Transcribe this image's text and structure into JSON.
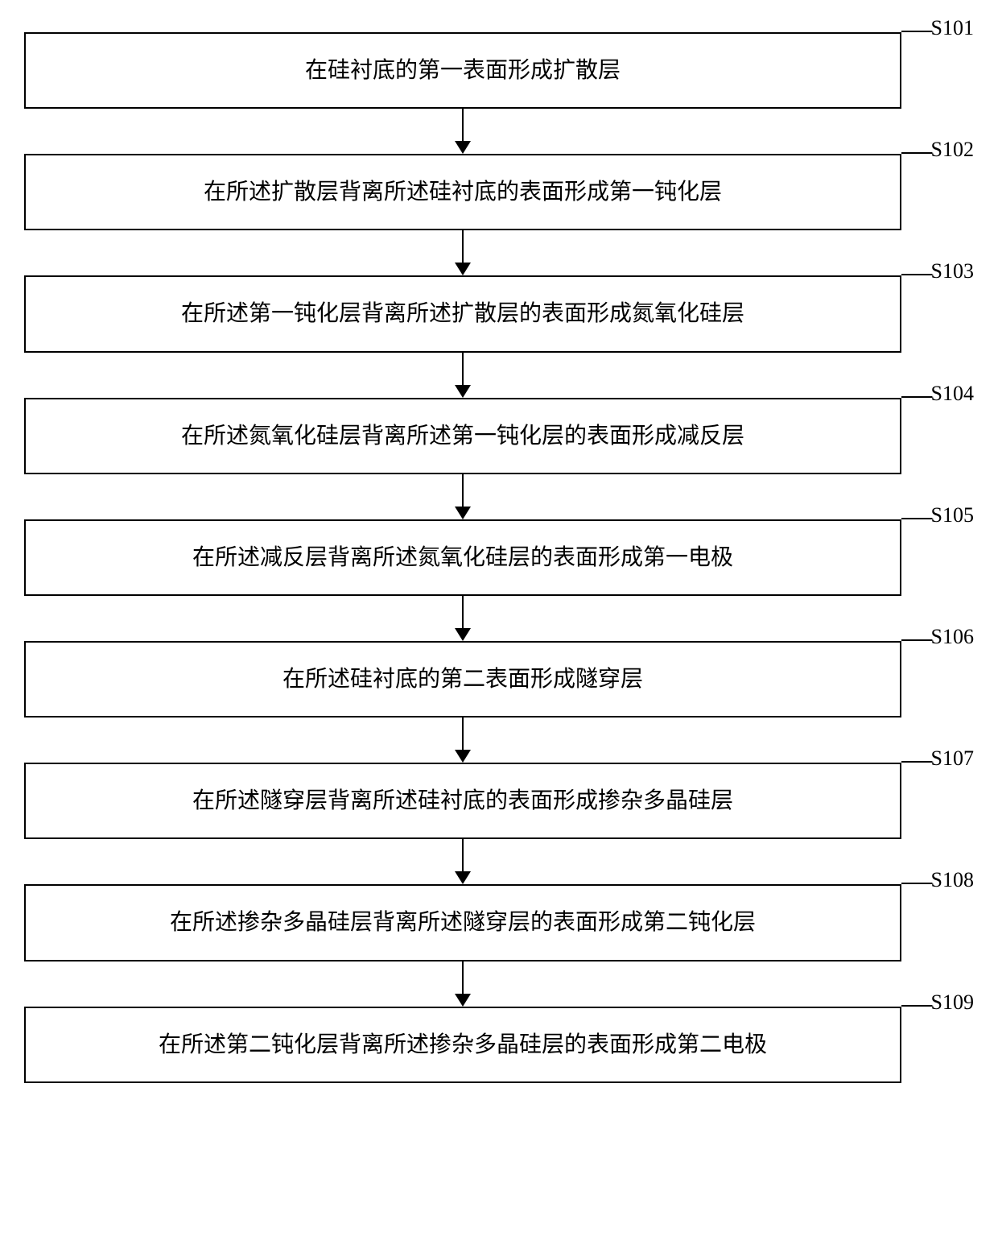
{
  "flowchart": {
    "type": "flowchart",
    "direction": "vertical",
    "background_color": "#ffffff",
    "box_border_color": "#000000",
    "box_border_width": 2,
    "text_color": "#000000",
    "font_family": "SimSun",
    "box_fontsize": 28,
    "label_fontsize": 26,
    "arrow_color": "#000000",
    "arrow_shaft_width": 2,
    "arrow_head_width": 20,
    "arrow_head_height": 16,
    "arrow_gap_height": 56,
    "steps": [
      {
        "label": "S101",
        "text": "在硅衬底的第一表面形成扩散层"
      },
      {
        "label": "S102",
        "text": "在所述扩散层背离所述硅衬底的表面形成第一钝化层"
      },
      {
        "label": "S103",
        "text": "在所述第一钝化层背离所述扩散层的表面形成氮氧化硅层"
      },
      {
        "label": "S104",
        "text": "在所述氮氧化硅层背离所述第一钝化层的表面形成减反层"
      },
      {
        "label": "S105",
        "text": "在所述减反层背离所述氮氧化硅层的表面形成第一电极"
      },
      {
        "label": "S106",
        "text": "在所述硅衬底的第二表面形成隧穿层"
      },
      {
        "label": "S107",
        "text": "在所述隧穿层背离所述硅衬底的表面形成掺杂多晶硅层"
      },
      {
        "label": "S108",
        "text": "在所述掺杂多晶硅层背离所述隧穿层的表面形成第二钝化层"
      },
      {
        "label": "S109",
        "text": "在所述第二钝化层背离所述掺杂多晶硅层的表面形成第二电极"
      }
    ]
  }
}
